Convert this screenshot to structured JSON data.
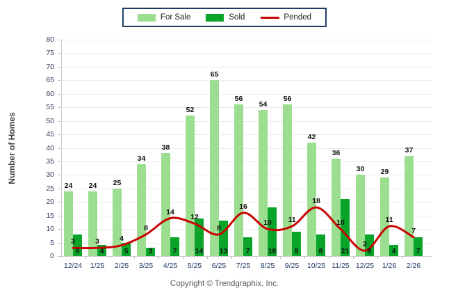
{
  "chart_data": {
    "type": "bar",
    "title": "",
    "categories": [
      "12/24",
      "1/25",
      "2/25",
      "3/25",
      "4/25",
      "5/25",
      "6/25",
      "7/25",
      "8/25",
      "9/25",
      "10/25",
      "11/25",
      "12/25",
      "1/26",
      "2/26"
    ],
    "series": [
      {
        "name": "For Sale",
        "type": "bar",
        "color": "#9CDE8F",
        "values": [
          24,
          24,
          25,
          34,
          38,
          52,
          65,
          56,
          54,
          56,
          42,
          36,
          30,
          29,
          37
        ]
      },
      {
        "name": "Sold",
        "type": "bar",
        "color": "#0AA42B",
        "values": [
          8,
          4,
          5,
          3,
          7,
          14,
          13,
          7,
          18,
          9,
          8,
          21,
          8,
          4,
          7
        ]
      },
      {
        "name": "Pended",
        "type": "line",
        "color": "#C90202",
        "values": [
          3,
          3,
          4,
          8,
          14,
          12,
          8,
          16,
          10,
          11,
          18,
          10,
          2,
          11,
          7
        ]
      }
    ],
    "xlabel": "",
    "ylabel": "Number of Homes",
    "ylim": [
      0,
      80
    ],
    "ytick_step": 5,
    "grid": true,
    "legend_position": "top-center"
  },
  "footer": {
    "copyright": "Copyright © Trendgraphix, Inc."
  }
}
